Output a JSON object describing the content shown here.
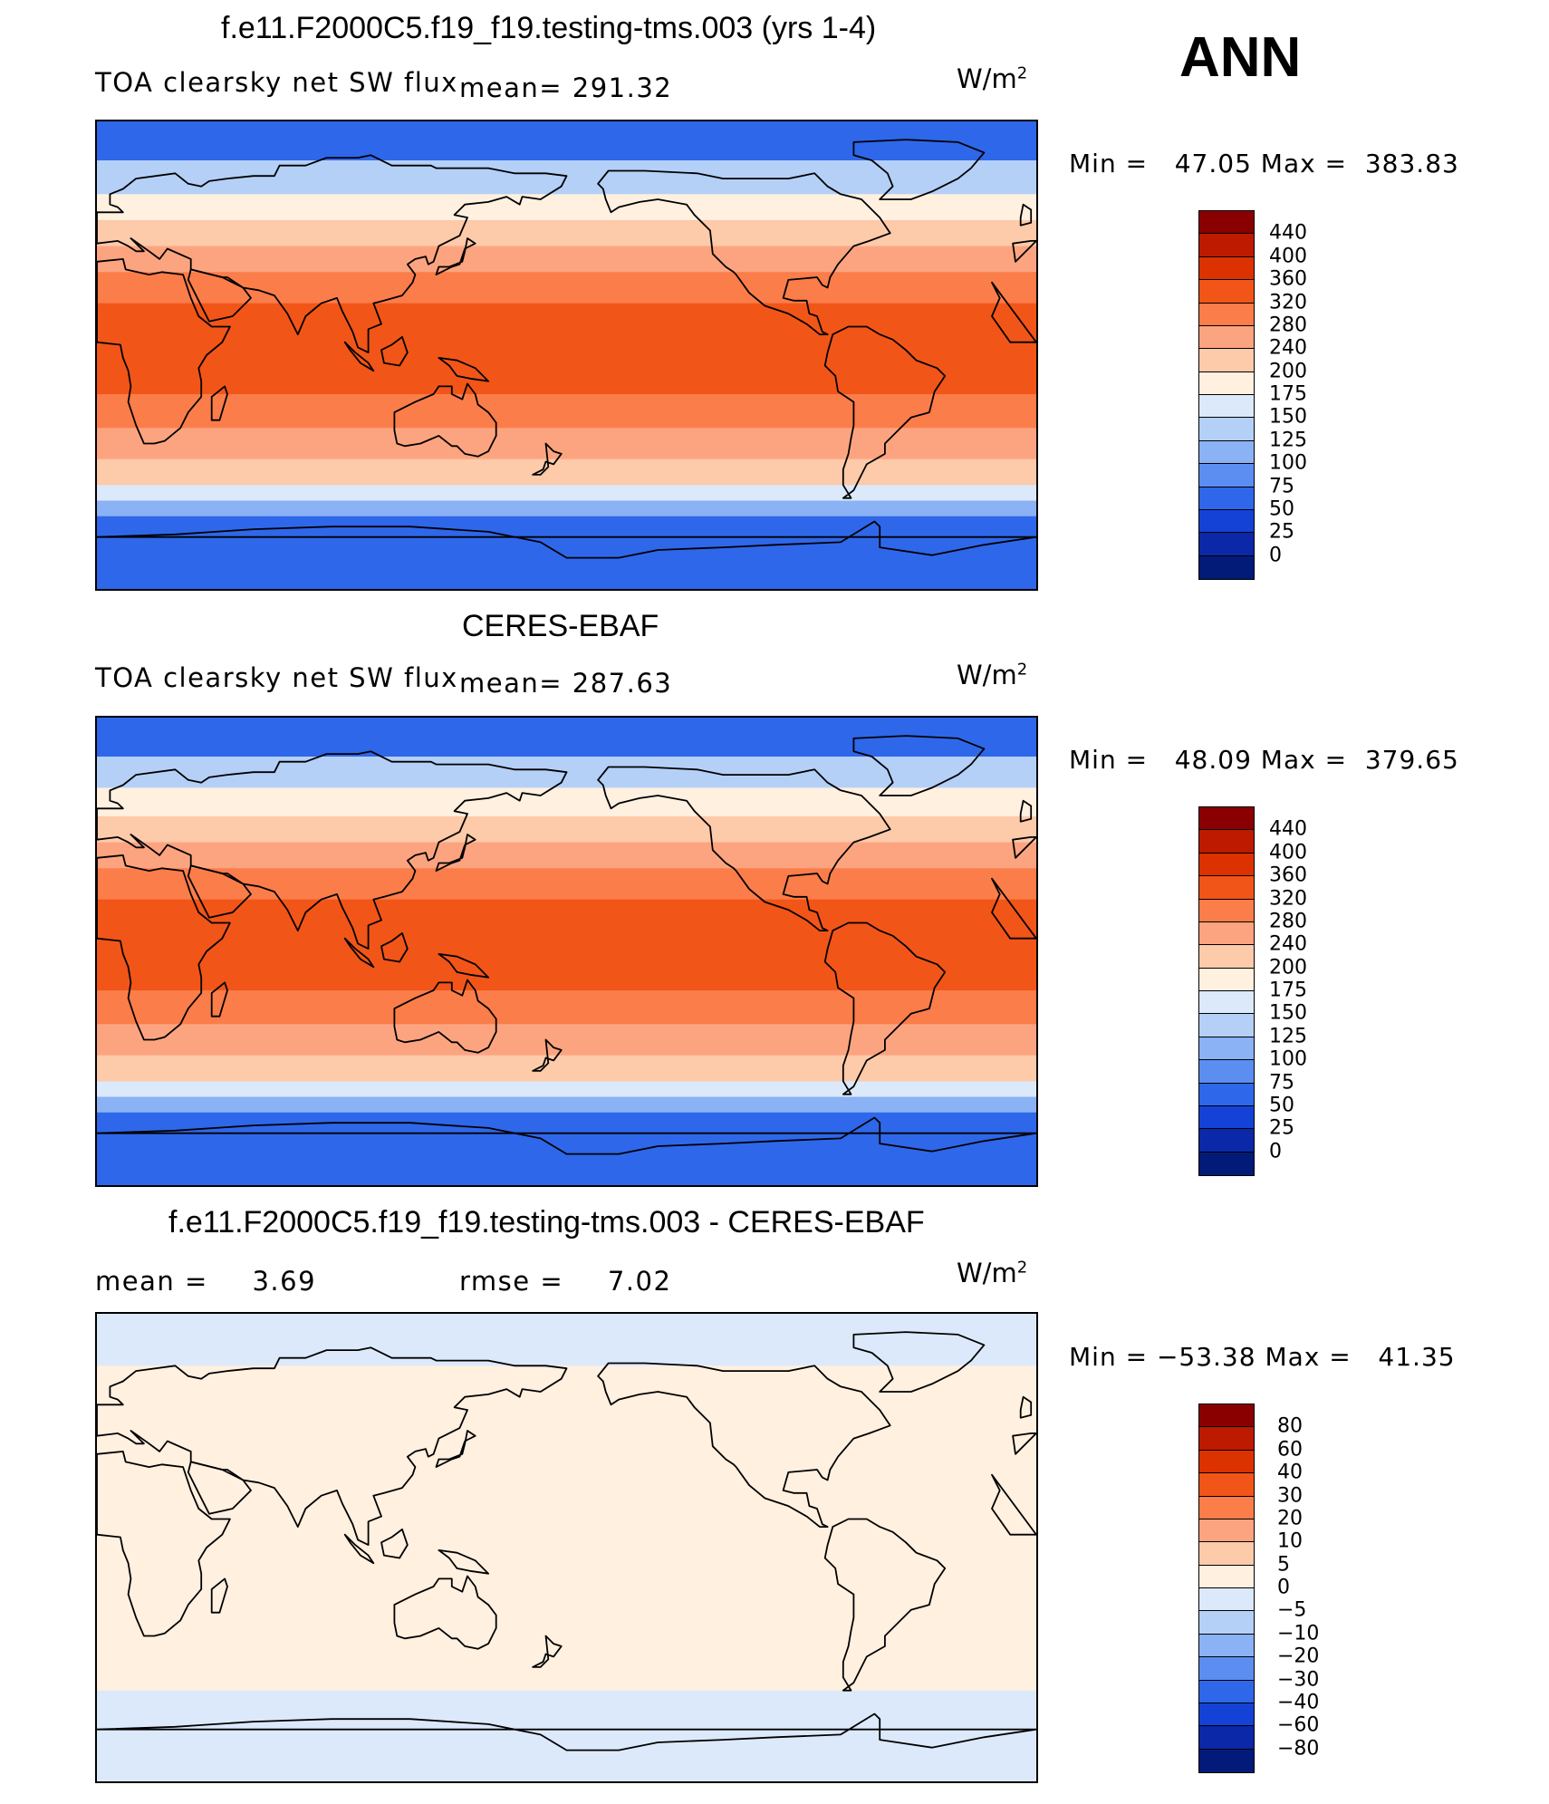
{
  "header": {
    "title": "f.e11.F2000C5.f19_f19.testing-tms.003 (yrs 1-4)",
    "season": "ANN"
  },
  "panels": [
    {
      "title": "",
      "variable": "TOA clearsky net SW flux",
      "stat_label": "mean=",
      "stat_value": "291.32",
      "units_base": "W/m",
      "units_exp": "2",
      "minmax": "Min =   47.05 Max =  383.83",
      "colorbar_labels": [
        "440",
        "400",
        "360",
        "320",
        "280",
        "240",
        "200",
        "175",
        "150",
        "125",
        "100",
        "75",
        "50",
        "25",
        "0"
      ],
      "colorbar_colors": [
        "#8a0000",
        "#bd1a00",
        "#dc3200",
        "#f25518",
        "#fa7d4a",
        "#fca480",
        "#fdcaaa",
        "#fff0e0",
        "#dce9fa",
        "#b4d0f7",
        "#8ab2f5",
        "#5c8ef2",
        "#2f67ea",
        "#1442d6",
        "#0a28a8",
        "#021a78"
      ],
      "latitude_bands": [
        {
          "from_lat": 90,
          "to_lat": 75,
          "value": 60
        },
        {
          "from_lat": 75,
          "to_lat": 62,
          "value": 130
        },
        {
          "from_lat": 62,
          "to_lat": 52,
          "value": 180
        },
        {
          "from_lat": 52,
          "to_lat": 42,
          "value": 220
        },
        {
          "from_lat": 42,
          "to_lat": 32,
          "value": 260
        },
        {
          "from_lat": 32,
          "to_lat": 20,
          "value": 300
        },
        {
          "from_lat": 20,
          "to_lat": -15,
          "value": 340
        },
        {
          "from_lat": -15,
          "to_lat": -28,
          "value": 310
        },
        {
          "from_lat": -28,
          "to_lat": -40,
          "value": 270
        },
        {
          "from_lat": -40,
          "to_lat": -50,
          "value": 210
        },
        {
          "from_lat": -50,
          "to_lat": -56,
          "value": 160
        },
        {
          "from_lat": -56,
          "to_lat": -62,
          "value": 110
        },
        {
          "from_lat": -62,
          "to_lat": -90,
          "value": 60
        }
      ]
    },
    {
      "title": "CERES-EBAF",
      "variable": "TOA clearsky net SW flux",
      "stat_label": "mean=",
      "stat_value": "287.63",
      "units_base": "W/m",
      "units_exp": "2",
      "minmax": "Min =   48.09 Max =  379.65",
      "colorbar_labels": [
        "440",
        "400",
        "360",
        "320",
        "280",
        "240",
        "200",
        "175",
        "150",
        "125",
        "100",
        "75",
        "50",
        "25",
        "0"
      ],
      "colorbar_colors": [
        "#8a0000",
        "#bd1a00",
        "#dc3200",
        "#f25518",
        "#fa7d4a",
        "#fca480",
        "#fdcaaa",
        "#fff0e0",
        "#dce9fa",
        "#b4d0f7",
        "#8ab2f5",
        "#5c8ef2",
        "#2f67ea",
        "#1442d6",
        "#0a28a8",
        "#021a78"
      ],
      "latitude_bands": [
        {
          "from_lat": 90,
          "to_lat": 75,
          "value": 60
        },
        {
          "from_lat": 75,
          "to_lat": 63,
          "value": 130
        },
        {
          "from_lat": 63,
          "to_lat": 52,
          "value": 180
        },
        {
          "from_lat": 52,
          "to_lat": 42,
          "value": 220
        },
        {
          "from_lat": 42,
          "to_lat": 32,
          "value": 260
        },
        {
          "from_lat": 32,
          "to_lat": 20,
          "value": 300
        },
        {
          "from_lat": 20,
          "to_lat": -15,
          "value": 340
        },
        {
          "from_lat": -15,
          "to_lat": -28,
          "value": 310
        },
        {
          "from_lat": -28,
          "to_lat": -40,
          "value": 270
        },
        {
          "from_lat": -40,
          "to_lat": -50,
          "value": 210
        },
        {
          "from_lat": -50,
          "to_lat": -56,
          "value": 160
        },
        {
          "from_lat": -56,
          "to_lat": -62,
          "value": 110
        },
        {
          "from_lat": -62,
          "to_lat": -90,
          "value": 60
        }
      ]
    },
    {
      "title": "f.e11.F2000C5.f19_f19.testing-tms.003 - CERES-EBAF",
      "mean_label": "mean =",
      "mean_value": "3.69",
      "rmse_label": "rmse =",
      "rmse_value": "7.02",
      "units_base": "W/m",
      "units_exp": "2",
      "minmax": "Min = −53.38 Max =   41.35",
      "colorbar_labels": [
        "80",
        "60",
        "40",
        "30",
        "20",
        "10",
        "5",
        "0",
        "−5",
        "−10",
        "−20",
        "−30",
        "−40",
        "−60",
        "−80"
      ],
      "colorbar_colors": [
        "#8a0000",
        "#bd1a00",
        "#dc3200",
        "#f25518",
        "#fa7d4a",
        "#fca480",
        "#fdcaaa",
        "#fff0e0",
        "#dce9fa",
        "#b4d0f7",
        "#8ab2f5",
        "#5c8ef2",
        "#2f67ea",
        "#1442d6",
        "#0a28a8",
        "#021a78"
      ],
      "latitude_bands": [
        {
          "from_lat": 90,
          "to_lat": 70,
          "value": -3
        },
        {
          "from_lat": 70,
          "to_lat": -55,
          "value": 3
        },
        {
          "from_lat": -55,
          "to_lat": -90,
          "value": -3
        }
      ]
    }
  ]
}
